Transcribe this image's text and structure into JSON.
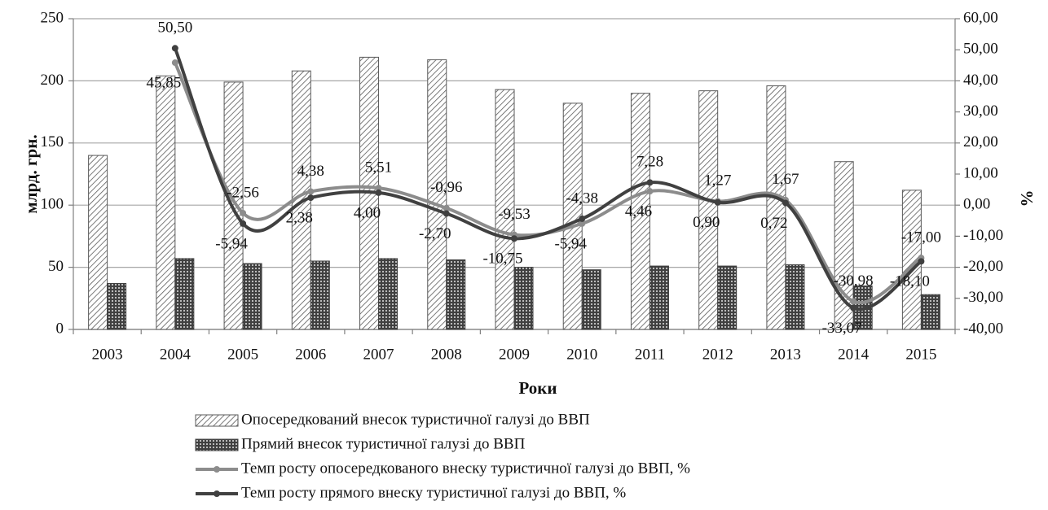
{
  "chart_data": {
    "type": "bar",
    "x_label": "Роки",
    "y_label": "млрд. грн.",
    "y2_label": "%",
    "categories": [
      "2003",
      "2004",
      "2005",
      "2006",
      "2007",
      "2008",
      "2009",
      "2010",
      "2011",
      "2012",
      "2013",
      "2014",
      "2015"
    ],
    "ylim": [
      0,
      250
    ],
    "yticks": [
      0,
      50,
      100,
      150,
      200,
      250
    ],
    "y2lim": [
      -40,
      60
    ],
    "y2ticks": [
      {
        "value": -40,
        "label": "-40,00"
      },
      {
        "value": -30,
        "label": "-30,00"
      },
      {
        "value": -20,
        "label": "-20,00"
      },
      {
        "value": -10,
        "label": "-10,00"
      },
      {
        "value": 0,
        "label": "0,00"
      },
      {
        "value": 10,
        "label": "10,00"
      },
      {
        "value": 20,
        "label": "20,00"
      },
      {
        "value": 30,
        "label": "30,00"
      },
      {
        "value": 40,
        "label": "40,00"
      },
      {
        "value": 50,
        "label": "50,00"
      },
      {
        "value": 60,
        "label": "60,00"
      }
    ],
    "grid": true,
    "legend": "bottom",
    "series": [
      {
        "name": "Опосередкований внесок туристичної галузі до ВВП",
        "type": "bar",
        "color": "#595959",
        "values": [
          140,
          204,
          199,
          208,
          219,
          217,
          193,
          182,
          190,
          192,
          196,
          135,
          112
        ]
      },
      {
        "name": "Прямий внесок туристичної галузі до ВВП",
        "type": "bar",
        "color": "#404040",
        "values": [
          37,
          57,
          53,
          55,
          57,
          56,
          50,
          48,
          51,
          51,
          52,
          35,
          28
        ]
      },
      {
        "name": "Темп росту опосередкованого внеску туристичної галузі до ВВП, %",
        "type": "line",
        "axis": "y2",
        "color": "#8c8c8c",
        "values": [
          null,
          45.85,
          -2.56,
          4.38,
          5.51,
          -0.96,
          -9.53,
          -5.94,
          4.46,
          1.27,
          1.67,
          -30.98,
          -17.0
        ],
        "value_labels": [
          null,
          "45,85",
          "-2,56",
          "4,38",
          "5,51",
          "-0,96",
          "-9,53",
          "-5,94",
          "4,46",
          "1,27",
          "1,67",
          "-30,98",
          "-17,00"
        ]
      },
      {
        "name": "Темп росту прямого внеску туристичної галузі до ВВП, %",
        "type": "line",
        "axis": "y2",
        "color": "#404040",
        "values": [
          null,
          50.5,
          -5.94,
          2.38,
          4.0,
          -2.7,
          -10.75,
          -4.38,
          7.28,
          0.9,
          0.72,
          -33.07,
          -18.1
        ],
        "value_labels": [
          null,
          "50,50",
          "-5,94",
          "2,38",
          "4,00",
          "-2,70",
          "-10,75",
          "-4,38",
          "7,28",
          "0,90",
          "0,72",
          "-33,07",
          "-18,10"
        ]
      }
    ]
  }
}
